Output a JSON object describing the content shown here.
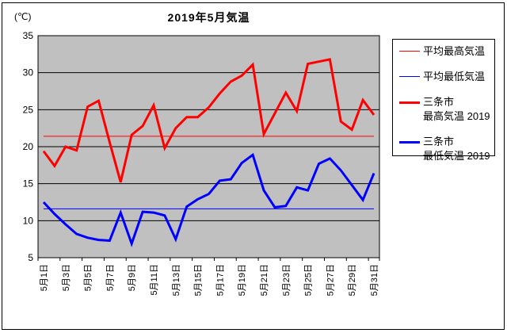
{
  "title": "2019年5月気温",
  "y_unit": "(℃)",
  "colors": {
    "max_line": "#ff0000",
    "min_line": "#0000ff",
    "plot_bg": "#c0c0c0",
    "grid": "#000000",
    "text": "#000000"
  },
  "legend": {
    "items": [
      {
        "label": "平均最高気温",
        "color": "#ff0000",
        "thick": false
      },
      {
        "label": "平均最低気温",
        "color": "#0000ff",
        "thick": false
      },
      {
        "label": "三条市\n最高気温 2019",
        "color": "#ff0000",
        "thick": true
      },
      {
        "label": "三条市\n最低気温 2019",
        "color": "#0000ff",
        "thick": true
      }
    ]
  },
  "chart_data": {
    "type": "line",
    "title": "2019年5月気温",
    "xlabel": "",
    "ylabel": "(℃)",
    "ylim": [
      5,
      35
    ],
    "ytick_step": 5,
    "grid": true,
    "legend_position": "right",
    "days": [
      1,
      2,
      3,
      4,
      5,
      6,
      7,
      8,
      9,
      10,
      11,
      12,
      13,
      14,
      15,
      16,
      17,
      18,
      19,
      20,
      21,
      22,
      23,
      24,
      25,
      26,
      27,
      28,
      29,
      30,
      31
    ],
    "x_labels_shown": [
      "5月1日",
      "5月3日",
      "5月5日",
      "5月7日",
      "5月9日",
      "5月11日",
      "5月13日",
      "5月15日",
      "5月17日",
      "5月19日",
      "5月21日",
      "5月23日",
      "5月25日",
      "5月27日",
      "5月29日",
      "5月31日"
    ],
    "series": [
      {
        "name": "平均最高気温",
        "type": "constant",
        "value": 21.4,
        "color": "#ff0000",
        "width": 1
      },
      {
        "name": "平均最低気温",
        "type": "constant",
        "value": 11.6,
        "color": "#0000ff",
        "width": 1
      },
      {
        "name": "三条市 最高気温 2019",
        "type": "line",
        "color": "#ff0000",
        "width": 3,
        "values": [
          19.4,
          17.4,
          20.0,
          19.5,
          25.4,
          26.2,
          20.6,
          15.2,
          21.6,
          22.8,
          25.6,
          19.8,
          22.5,
          24.0,
          24.0,
          25.3,
          27.2,
          28.8,
          29.6,
          31.1,
          21.7,
          24.5,
          27.3,
          24.8,
          31.2,
          31.5,
          31.8,
          23.4,
          22.3,
          26.3,
          24.3
        ]
      },
      {
        "name": "三条市 最低気温 2019",
        "type": "line",
        "color": "#0000ff",
        "width": 3,
        "values": [
          12.5,
          10.9,
          9.5,
          8.2,
          7.7,
          7.4,
          7.3,
          11.1,
          6.9,
          11.2,
          11.1,
          10.7,
          7.5,
          11.9,
          12.9,
          13.6,
          15.4,
          15.6,
          17.8,
          18.9,
          14.1,
          11.8,
          12.0,
          14.5,
          14.1,
          17.7,
          18.4,
          16.8,
          14.8,
          12.8,
          16.4
        ]
      }
    ]
  }
}
